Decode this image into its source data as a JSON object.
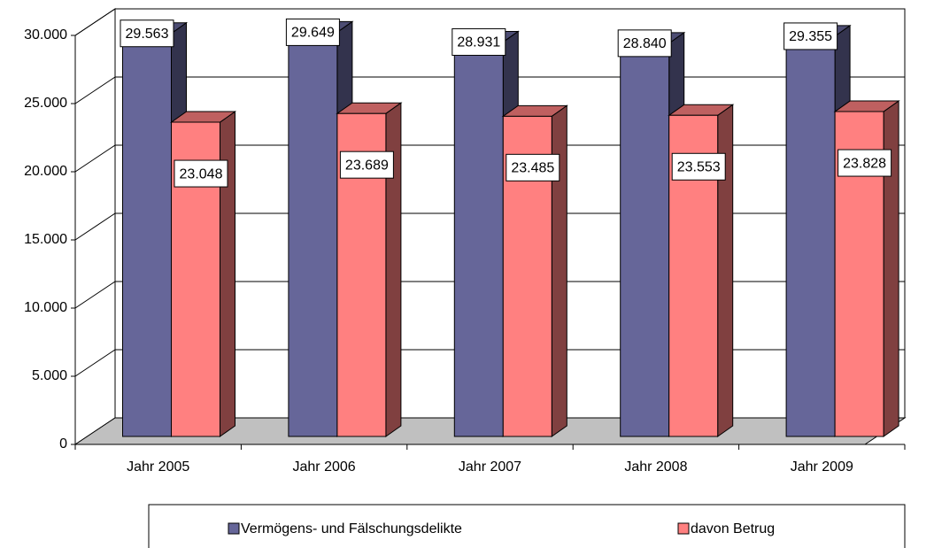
{
  "chart_data": {
    "type": "bar3d",
    "categories": [
      "Jahr 2005",
      "Jahr 2006",
      "Jahr 2007",
      "Jahr 2008",
      "Jahr 2009"
    ],
    "series": [
      {
        "name": "Vermögens- und Fälschungsdelikte",
        "color": "#666699",
        "values": [
          29563,
          29649,
          28931,
          28840,
          29355
        ],
        "value_labels": [
          "29.563",
          "29.649",
          "28.931",
          "28.840",
          "29.355"
        ]
      },
      {
        "name": "davon Betrug",
        "color": "#ff8080",
        "values": [
          23048,
          23689,
          23485,
          23553,
          23828
        ],
        "value_labels": [
          "23.048",
          "23.689",
          "23.485",
          "23.553",
          "23.828"
        ]
      }
    ],
    "ylim": [
      0,
      30000
    ],
    "yticks": [
      {
        "value": 0,
        "label": "0"
      },
      {
        "value": 5000,
        "label": "5.000"
      },
      {
        "value": 10000,
        "label": "10.000"
      },
      {
        "value": 15000,
        "label": "15.000"
      },
      {
        "value": 20000,
        "label": "20.000"
      },
      {
        "value": 25000,
        "label": "25.000"
      },
      {
        "value": 30000,
        "label": "30.000"
      }
    ],
    "grid": true,
    "legend": "bottom"
  }
}
